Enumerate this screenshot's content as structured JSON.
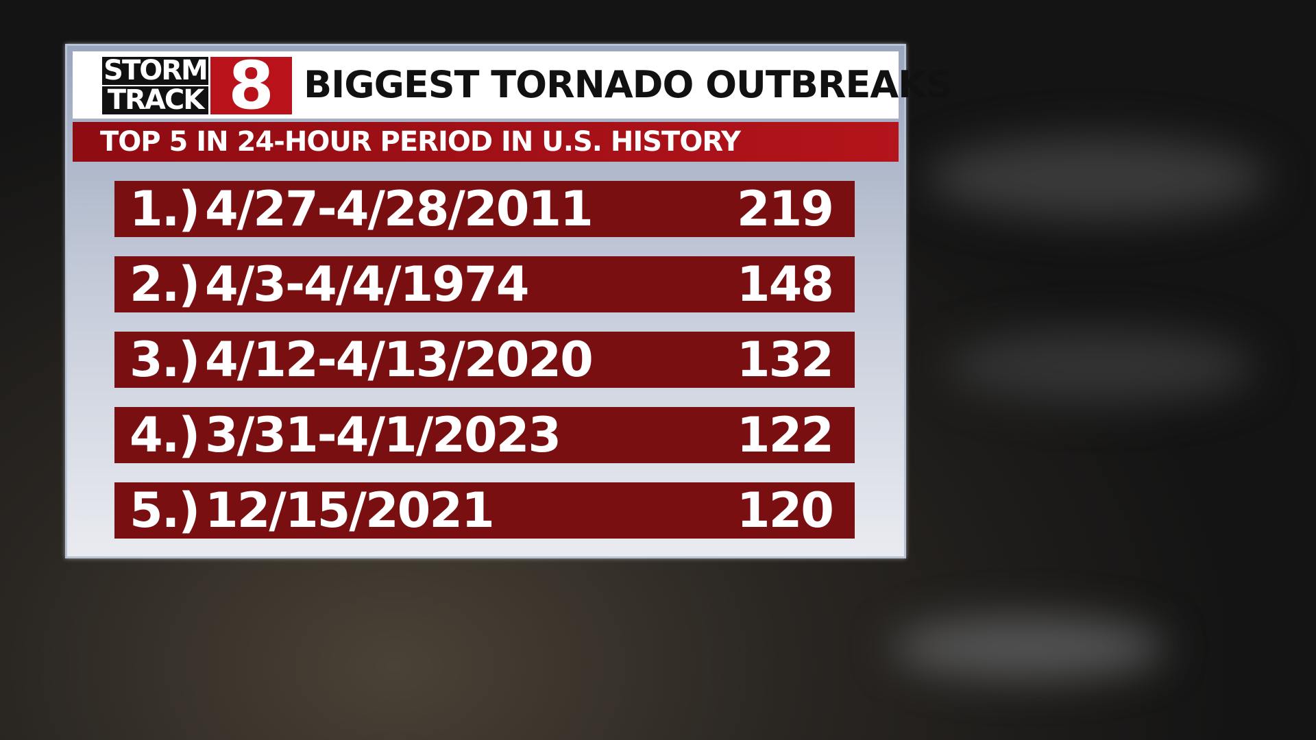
{
  "logo": {
    "line1": "STORM",
    "line2": "TRACK",
    "number": "8"
  },
  "header": {
    "title": "BIGGEST TORNADO OUTBREAKS",
    "subtitle": "TOP 5 IN 24-HOUR PERIOD IN U.S. HISTORY"
  },
  "table": {
    "rows": [
      [
        "1.)",
        "4/27-4/28/2011",
        219
      ],
      [
        "2.)",
        "4/3-4/4/1974",
        148
      ],
      [
        "3.)",
        "4/12-4/13/2020",
        132
      ],
      [
        "4.)",
        "3/31-4/1/2023",
        122
      ],
      [
        "5.)",
        "12/15/2021",
        120
      ]
    ]
  }
}
